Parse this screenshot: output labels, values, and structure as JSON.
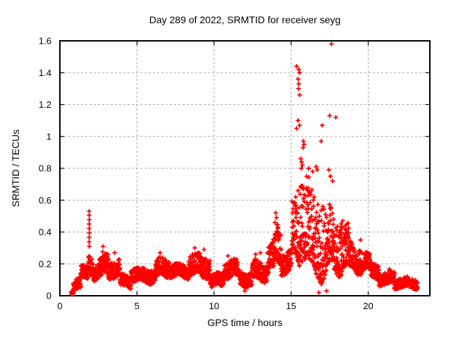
{
  "chart": {
    "title": "Day 289 of 2022, SRMTID for receiver seyg",
    "xlabel": "GPS time / hours",
    "ylabel": "SRMTID / TECUs"
  },
  "chart_data": {
    "type": "scatter",
    "title": "Day 289 of 2022, SRMTID for receiver seyg",
    "xlabel": "GPS time / hours",
    "ylabel": "SRMTID / TECUs",
    "xlim": [
      0,
      24
    ],
    "ylim": [
      0,
      1.6
    ],
    "x_ticks": {
      "values": [
        0,
        5,
        10,
        15,
        20
      ],
      "labels": [
        "0",
        "5",
        "10",
        "15",
        "20"
      ]
    },
    "y_ticks": {
      "values": [
        0,
        0.2,
        0.4,
        0.6,
        0.8,
        1.0,
        1.2,
        1.4,
        1.6
      ],
      "labels": [
        "0",
        "0.2",
        "0.4",
        "0.6",
        "0.8",
        "1",
        "1.2",
        "1.4",
        "1.6"
      ]
    },
    "x_gridlines": [
      5,
      10,
      15,
      20
    ],
    "y_gridlines": [
      0.2,
      0.4,
      0.6,
      0.8,
      1.0,
      1.2,
      1.4
    ],
    "grid": {
      "on": true,
      "color": "#a8a8a8",
      "dash": "3,3"
    },
    "legend": "none",
    "marker": {
      "shape": "plus",
      "color": "#ff0000",
      "size": 7,
      "stroke_width": 1.8
    },
    "border_color": "#000000",
    "series_summary": "SRMTID scatter, 30 s cadence, data from 0.75 h to 23.2 h; quiet-time band 0.05-0.25 TECU; spike to 0.53 at 1.9 h; main disturbance 15-18.5 h with maximum 1.58 at 17.6 h and string 1.26-1.44 near 15.5 h; decay to ~0.05 by 23 h",
    "sampling_interval_hours": 0.008333,
    "seed": 2892022,
    "band_segments": [
      [
        0.74,
        0.88,
        0.005,
        0.035,
        1.0
      ],
      [
        0.88,
        1.35,
        0.03,
        0.13,
        1.2
      ],
      [
        1.35,
        1.8,
        0.09,
        0.21,
        1.1
      ],
      [
        1.8,
        2.15,
        0.12,
        0.3,
        1.3
      ],
      [
        2.15,
        2.75,
        0.09,
        0.26,
        1.4
      ],
      [
        2.75,
        3.15,
        0.1,
        0.3,
        1.4
      ],
      [
        3.15,
        3.9,
        0.08,
        0.24,
        1.4
      ],
      [
        3.9,
        4.6,
        0.03,
        0.14,
        1.2
      ],
      [
        4.6,
        6.2,
        0.07,
        0.2,
        1.3
      ],
      [
        6.2,
        7.1,
        0.09,
        0.26,
        1.4
      ],
      [
        7.1,
        8.35,
        0.09,
        0.21,
        1.3
      ],
      [
        8.35,
        9.75,
        0.1,
        0.3,
        1.5
      ],
      [
        9.75,
        10.65,
        0.04,
        0.16,
        1.3
      ],
      [
        10.65,
        11.65,
        0.08,
        0.24,
        1.4
      ],
      [
        11.65,
        12.45,
        0.04,
        0.17,
        1.3
      ],
      [
        12.45,
        13.45,
        0.08,
        0.26,
        1.4
      ],
      [
        13.45,
        13.9,
        0.12,
        0.38,
        1.4
      ],
      [
        13.9,
        14.35,
        0.14,
        0.5,
        1.5
      ],
      [
        14.35,
        15.05,
        0.1,
        0.3,
        1.4
      ],
      [
        15.05,
        15.55,
        0.1,
        0.68,
        2.0
      ],
      [
        15.55,
        16.15,
        0.13,
        0.92,
        1.9
      ],
      [
        16.15,
        16.65,
        0.06,
        0.8,
        2.1
      ],
      [
        16.65,
        17.25,
        0.07,
        0.82,
        2.0
      ],
      [
        17.25,
        17.75,
        0.08,
        0.65,
        1.9
      ],
      [
        17.75,
        18.25,
        0.05,
        0.58,
        1.9
      ],
      [
        18.25,
        18.75,
        0.07,
        0.48,
        1.7
      ],
      [
        18.75,
        19.6,
        0.1,
        0.35,
        1.4
      ],
      [
        19.6,
        20.15,
        0.13,
        0.3,
        1.3
      ],
      [
        20.15,
        20.7,
        0.1,
        0.24,
        1.3
      ],
      [
        20.7,
        21.35,
        0.05,
        0.16,
        1.3
      ],
      [
        21.35,
        21.7,
        0.06,
        0.18,
        1.4
      ],
      [
        21.7,
        23.2,
        0.03,
        0.12,
        1.4
      ]
    ],
    "outlier_points": [
      [
        1.895,
        0.53
      ],
      [
        1.9,
        0.505
      ],
      [
        1.905,
        0.478
      ],
      [
        1.895,
        0.45
      ],
      [
        1.9,
        0.422
      ],
      [
        1.905,
        0.394
      ],
      [
        1.9,
        0.366
      ],
      [
        1.895,
        0.338
      ],
      [
        1.9,
        0.31
      ],
      [
        2.8,
        0.31
      ],
      [
        3.55,
        0.27
      ],
      [
        6.5,
        0.27
      ],
      [
        8.75,
        0.3
      ],
      [
        9.35,
        0.29
      ],
      [
        10.9,
        0.25
      ],
      [
        12.7,
        0.26
      ],
      [
        13.0,
        0.27
      ],
      [
        14.0,
        0.52
      ],
      [
        14.05,
        0.49
      ],
      [
        13.95,
        0.46
      ],
      [
        15.3,
        0.62
      ],
      [
        15.45,
        0.66
      ],
      [
        15.35,
        1.44
      ],
      [
        15.5,
        1.42
      ],
      [
        15.55,
        1.4
      ],
      [
        15.45,
        1.36
      ],
      [
        15.5,
        1.33
      ],
      [
        15.48,
        1.3
      ],
      [
        15.55,
        1.26
      ],
      [
        15.45,
        1.1
      ],
      [
        15.55,
        1.07
      ],
      [
        15.35,
        1.05
      ],
      [
        15.8,
        0.97
      ],
      [
        15.84,
        0.95
      ],
      [
        15.77,
        0.93
      ],
      [
        15.62,
        0.86
      ],
      [
        15.68,
        0.84
      ],
      [
        15.73,
        0.82
      ],
      [
        15.66,
        0.8
      ],
      [
        16.4,
        0.78
      ],
      [
        16.62,
        0.81
      ],
      [
        16.7,
        0.79
      ],
      [
        16.95,
        0.97
      ],
      [
        17.02,
        1.07
      ],
      [
        17.5,
        1.13
      ],
      [
        17.9,
        1.12
      ],
      [
        17.62,
        1.58
      ],
      [
        17.45,
        0.79
      ],
      [
        17.55,
        0.75
      ],
      [
        17.7,
        0.72
      ],
      [
        18.35,
        0.47
      ],
      [
        18.3,
        0.43
      ],
      [
        19.5,
        0.35
      ],
      [
        12.0,
        0.03
      ],
      [
        16.8,
        0.02
      ],
      [
        17.3,
        0.03
      ]
    ]
  }
}
